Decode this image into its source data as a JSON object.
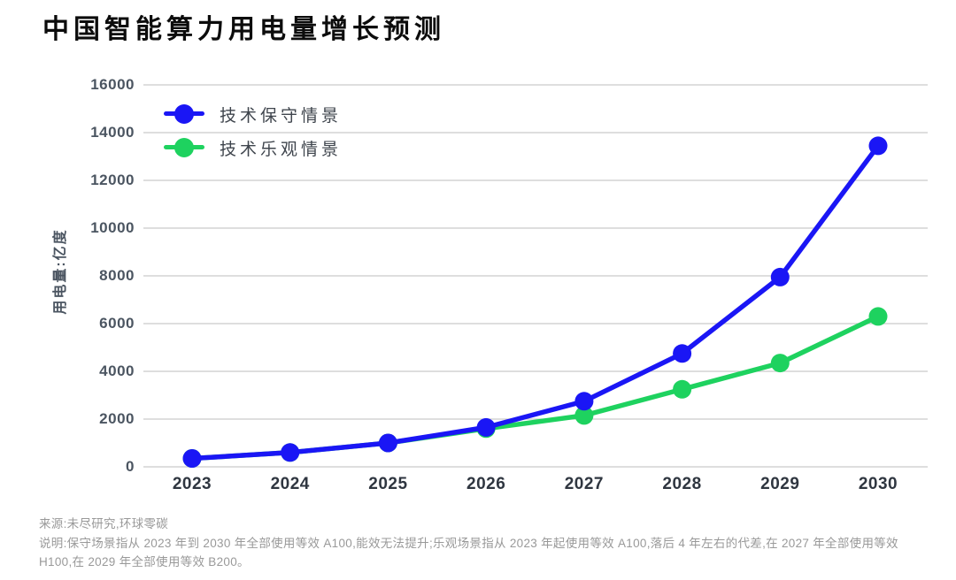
{
  "title": "中国智能算力用电量增长预测",
  "y_axis_title": "用电量:亿度",
  "footer": {
    "source": "来源:未尽研究,环球零碳",
    "note": "说明:保守场景指从 2023 年到 2030 年全部使用等效 A100,能效无法提升;乐观场景指从 2023 年起使用等效 A100,落后 4 年左右的代差,在 2027 年全部使用等效 H100,在 2029 年全部使用等效 B200。"
  },
  "colors": {
    "conservative_blue": "#1a16f5",
    "optimistic_green": "#1ed25f",
    "gridline": "#cbcbcb",
    "axis_text": "#4b5561",
    "footer_text": "#999999"
  },
  "chart_data": {
    "type": "line",
    "title": "中国智能算力用电量增长预测",
    "categories": [
      "2023",
      "2024",
      "2025",
      "2026",
      "2027",
      "2028",
      "2029",
      "2030"
    ],
    "series": [
      {
        "name": "技术保守情景",
        "color": "#1a16f5",
        "values": [
          350,
          600,
          1000,
          1650,
          2750,
          4750,
          7950,
          13450
        ]
      },
      {
        "name": "技术乐观情景",
        "color": "#1ed25f",
        "values": [
          350,
          600,
          1000,
          1600,
          2150,
          3250,
          4350,
          6300
        ]
      }
    ],
    "xlabel": "",
    "ylabel": "用电量:亿度",
    "ylim": [
      0,
      16000
    ],
    "y_ticks": [
      0,
      2000,
      4000,
      6000,
      8000,
      10000,
      12000,
      14000,
      16000
    ],
    "grid": "horizontal",
    "gridline_color": "#cbcbcb",
    "legend_position": "top-left",
    "marker": "circle"
  }
}
